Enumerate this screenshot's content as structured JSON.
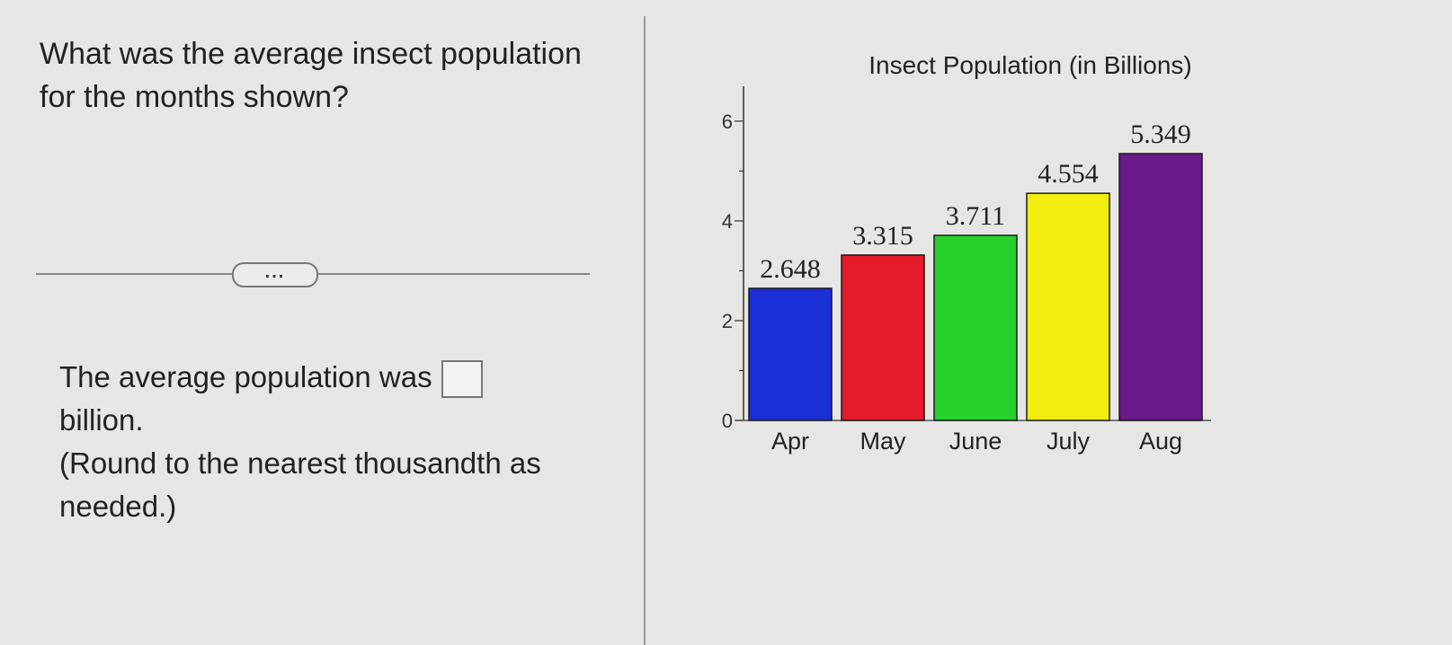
{
  "question": {
    "text": "What was the average insect population for the months shown?"
  },
  "more_button": {
    "label": "..."
  },
  "answer": {
    "prefix": "The average population was",
    "suffix": "billion.",
    "hint": "(Round to the nearest thousandth as needed.)",
    "value": ""
  },
  "chart_data": {
    "type": "bar",
    "title": "Insect Population (in Billions)",
    "xlabel": "",
    "ylabel": "",
    "categories": [
      "Apr",
      "May",
      "June",
      "July",
      "Aug"
    ],
    "values": [
      2.648,
      3.315,
      3.711,
      4.554,
      5.349
    ],
    "value_labels": [
      "2.648",
      "3.315",
      "3.711",
      "4.554",
      "5.349"
    ],
    "colors": [
      "#1b2fd6",
      "#e31b2a",
      "#25d12a",
      "#f2ec10",
      "#6a1a8a"
    ],
    "yticks": [
      0,
      2,
      4,
      6
    ],
    "ylim": [
      0,
      6.7
    ],
    "grid": false,
    "legend": "none"
  }
}
